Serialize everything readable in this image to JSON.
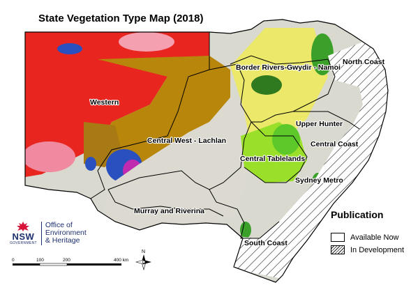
{
  "title": "State Vegetation Type Map (2018)",
  "regions": {
    "western": "Western",
    "central_west_lachlan": "Central West - Lachlan",
    "murray_riverina": "Murray and Riverina",
    "border_rivers": "Border Rivers-Gwydir - Namoi",
    "north_coast": "North Coast",
    "upper_hunter": "Upper Hunter",
    "central_coast": "Central Coast",
    "central_tablelands": "Central Tablelands",
    "sydney_metro": "Sydney Metro",
    "south_coast": "South Coast"
  },
  "legend": {
    "title": "Publication",
    "available": "Available Now",
    "in_development": "In Development"
  },
  "logo": {
    "nsw": "NSW",
    "government": "GOVERNMENT",
    "office_line1": "Office of",
    "office_line2": "Environment",
    "office_line3": "& Heritage"
  },
  "scale": {
    "ticks": [
      "0",
      "100",
      "200",
      "400 km"
    ]
  },
  "north_label": "N",
  "colors": {
    "western_red": "#e8261f",
    "central_brown": "#b8860b",
    "riverina_grey": "#d9d9cf",
    "coast_green": "#3aa02a",
    "yellow": "#e8e83a",
    "blue": "#2a4fbf",
    "magenta": "#c02ab0",
    "boundary": "#000000",
    "logo_blue": "#1d2f6f",
    "logo_red": "#d7153a"
  }
}
